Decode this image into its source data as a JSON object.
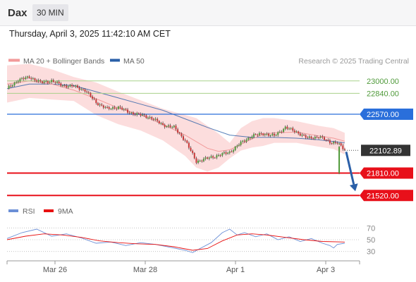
{
  "header": {
    "symbol": "Dax",
    "timeframe": "30 MIN",
    "datetime": "Thursday, April 3, 2025 11:42:10 AM CET"
  },
  "colors": {
    "bollinger_fill": "#fbd2d2",
    "ma20": "#f29a9a",
    "ma50": "#2a5fa8",
    "bull": "#4f9a3a",
    "bear": "#c63a3a",
    "target_green": "#a8d18a",
    "pivot_blue": "#2a6fdb",
    "support_red": "#e8101a",
    "arrow": "#2a5fa8",
    "rsi": "#6b8fd6",
    "rsi_ma": "#e81010"
  },
  "chart_data": [
    {
      "type": "candlestick",
      "title": "",
      "legend": [
        {
          "name": "MA 20 + Bollinger Bands",
          "color": "#f29a9a"
        },
        {
          "name": "MA 50",
          "color": "#2a5fa8"
        }
      ],
      "copyright": "Research © 2025 Trading Central",
      "x_ticks": [
        "Mar 26",
        "Mar 28",
        "Apr 1",
        "Apr 3"
      ],
      "ylim": [
        21450,
        23180
      ],
      "levels": [
        {
          "label": "23000.00",
          "value": 23000,
          "style": "target"
        },
        {
          "label": "22840.00",
          "value": 22840,
          "style": "target"
        },
        {
          "label": "22570.00",
          "value": 22570,
          "style": "pivot"
        },
        {
          "label": "21810.00",
          "value": 21810,
          "style": "support"
        },
        {
          "label": "21520.00",
          "value": 21520,
          "style": "support"
        }
      ],
      "last_price": {
        "label": "22102.89",
        "value": 22102.89
      },
      "arrow": {
        "from": 22102.89,
        "to": 21520
      },
      "close_path": [
        [
          0,
          22900
        ],
        [
          6,
          23010
        ],
        [
          12,
          23050
        ],
        [
          18,
          22980
        ],
        [
          24,
          23000
        ],
        [
          30,
          22940
        ],
        [
          36,
          22930
        ],
        [
          42,
          22880
        ],
        [
          48,
          22720
        ],
        [
          54,
          22640
        ],
        [
          60,
          22660
        ],
        [
          66,
          22590
        ],
        [
          72,
          22560
        ],
        [
          78,
          22520
        ],
        [
          84,
          22430
        ],
        [
          90,
          22400
        ],
        [
          96,
          22230
        ],
        [
          102,
          21960
        ],
        [
          108,
          22000
        ],
        [
          114,
          22040
        ],
        [
          120,
          22080
        ],
        [
          126,
          22200
        ],
        [
          132,
          22290
        ],
        [
          138,
          22320
        ],
        [
          144,
          22290
        ],
        [
          150,
          22400
        ],
        [
          156,
          22340
        ],
        [
          162,
          22260
        ],
        [
          168,
          22280
        ],
        [
          174,
          22210
        ],
        [
          178,
          22200
        ],
        [
          182,
          22105
        ]
      ],
      "bollinger": [
        [
          0,
          22720,
          23200
        ],
        [
          12,
          22780,
          23220
        ],
        [
          24,
          22760,
          23150
        ],
        [
          36,
          22740,
          23050
        ],
        [
          48,
          22560,
          22980
        ],
        [
          60,
          22440,
          22860
        ],
        [
          72,
          22360,
          22750
        ],
        [
          84,
          22230,
          22640
        ],
        [
          96,
          22030,
          22560
        ],
        [
          102,
          21880,
          22520
        ],
        [
          108,
          21830,
          22420
        ],
        [
          114,
          21880,
          22320
        ],
        [
          120,
          22000,
          22200
        ],
        [
          126,
          22100,
          22390
        ],
        [
          132,
          22140,
          22480
        ],
        [
          138,
          22160,
          22520
        ],
        [
          144,
          22200,
          22520
        ],
        [
          156,
          22200,
          22480
        ],
        [
          168,
          22150,
          22420
        ],
        [
          176,
          22120,
          22390
        ],
        [
          182,
          22050,
          22330
        ]
      ],
      "ma20": [
        [
          0,
          22960
        ],
        [
          12,
          23000
        ],
        [
          24,
          22960
        ],
        [
          36,
          22880
        ],
        [
          48,
          22770
        ],
        [
          60,
          22650
        ],
        [
          72,
          22560
        ],
        [
          84,
          22440
        ],
        [
          96,
          22300
        ],
        [
          108,
          22130
        ],
        [
          114,
          22090
        ],
        [
          120,
          22110
        ],
        [
          126,
          22180
        ],
        [
          132,
          22250
        ],
        [
          138,
          22310
        ],
        [
          144,
          22330
        ],
        [
          156,
          22340
        ],
        [
          168,
          22290
        ],
        [
          176,
          22260
        ],
        [
          182,
          22220
        ]
      ],
      "ma50": [
        [
          0,
          22900
        ],
        [
          12,
          22960
        ],
        [
          24,
          22960
        ],
        [
          36,
          22940
        ],
        [
          48,
          22860
        ],
        [
          60,
          22780
        ],
        [
          72,
          22700
        ],
        [
          84,
          22620
        ],
        [
          96,
          22510
        ],
        [
          108,
          22400
        ],
        [
          120,
          22300
        ],
        [
          132,
          22270
        ],
        [
          144,
          22270
        ],
        [
          156,
          22260
        ],
        [
          168,
          22240
        ],
        [
          182,
          22200
        ]
      ]
    },
    {
      "type": "line",
      "title": "",
      "legend": [
        {
          "name": "RSI",
          "color": "#6b8fd6"
        },
        {
          "name": "9MA",
          "color": "#e81010"
        }
      ],
      "ylim": [
        20,
        80
      ],
      "y_ticks": [
        70,
        50,
        30
      ],
      "series": [
        {
          "name": "RSI",
          "points": [
            [
              0,
              52
            ],
            [
              8,
              62
            ],
            [
              16,
              68
            ],
            [
              24,
              56
            ],
            [
              32,
              60
            ],
            [
              40,
              53
            ],
            [
              48,
              44
            ],
            [
              56,
              46
            ],
            [
              64,
              40
            ],
            [
              72,
              45
            ],
            [
              80,
              42
            ],
            [
              88,
              37
            ],
            [
              96,
              32
            ],
            [
              100,
              28
            ],
            [
              104,
              35
            ],
            [
              110,
              45
            ],
            [
              116,
              62
            ],
            [
              120,
              68
            ],
            [
              124,
              58
            ],
            [
              128,
              62
            ],
            [
              134,
              55
            ],
            [
              140,
              60
            ],
            [
              146,
              50
            ],
            [
              152,
              55
            ],
            [
              158,
              47
            ],
            [
              164,
              52
            ],
            [
              170,
              44
            ],
            [
              174,
              40
            ],
            [
              176,
              36
            ],
            [
              178,
              42
            ],
            [
              182,
              44
            ]
          ]
        },
        {
          "name": "9MA",
          "points": [
            [
              0,
              50
            ],
            [
              10,
              56
            ],
            [
              20,
              60
            ],
            [
              30,
              58
            ],
            [
              40,
              54
            ],
            [
              50,
              48
            ],
            [
              60,
              45
            ],
            [
              70,
              43
            ],
            [
              80,
              42
            ],
            [
              90,
              38
            ],
            [
              100,
              32
            ],
            [
              108,
              35
            ],
            [
              116,
              48
            ],
            [
              124,
              58
            ],
            [
              132,
              60
            ],
            [
              140,
              58
            ],
            [
              150,
              54
            ],
            [
              160,
              50
            ],
            [
              170,
              47
            ],
            [
              182,
              46
            ]
          ]
        }
      ]
    }
  ]
}
